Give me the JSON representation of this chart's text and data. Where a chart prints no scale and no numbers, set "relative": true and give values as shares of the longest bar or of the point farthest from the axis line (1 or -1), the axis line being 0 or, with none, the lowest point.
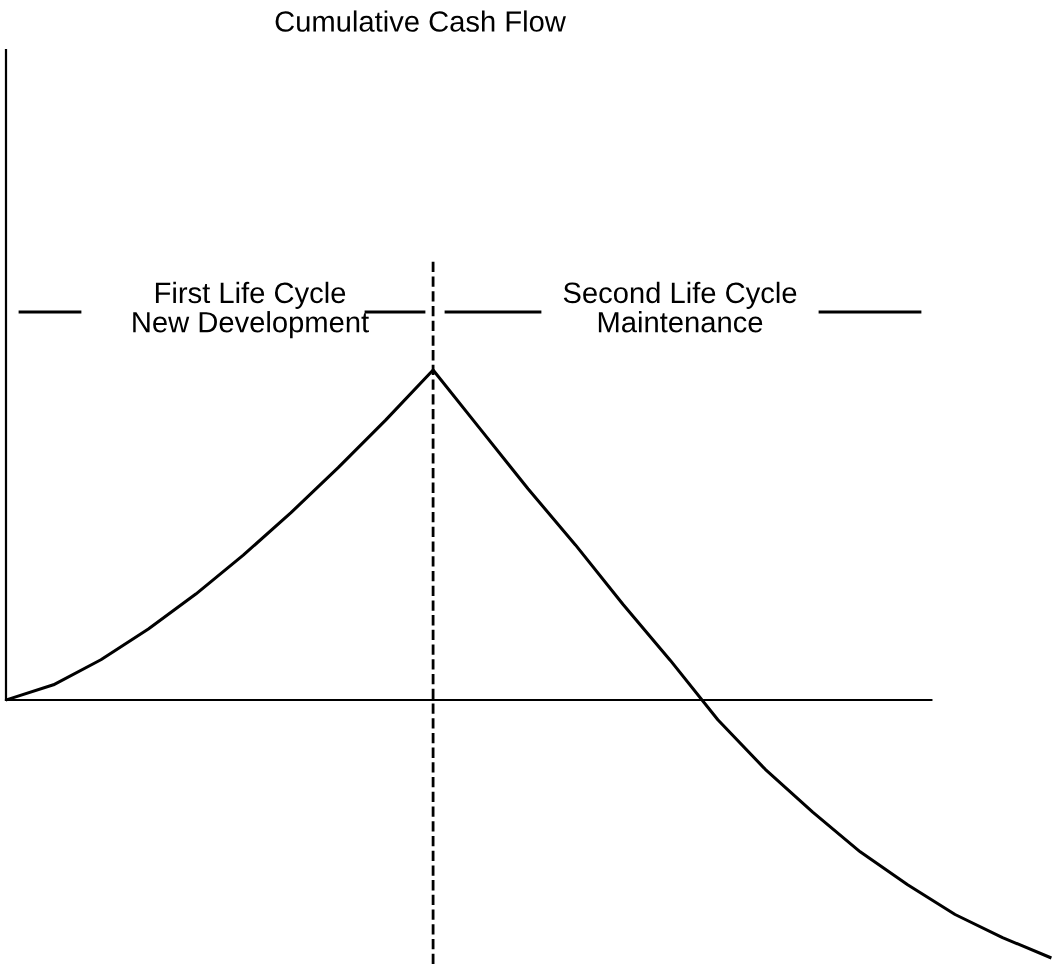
{
  "chart_data": {
    "type": "line",
    "title": "Cumulative Cash Flow",
    "relative": true,
    "categories": [
      null,
      null,
      null,
      null,
      null,
      null,
      null,
      null,
      null,
      null,
      null,
      null,
      null,
      null,
      null,
      null,
      null,
      null,
      null,
      null,
      null,
      null,
      null
    ],
    "series": [
      {
        "color": "#000000",
        "values": [
          0,
          0.046,
          0.122,
          0.215,
          0.321,
          0.439,
          0.567,
          0.704,
          0.848,
          1,
          0.82,
          0.64,
          0.47,
          0.29,
          0.12,
          -0.06,
          -0.21,
          -0.34,
          -0.46,
          -0.56,
          -0.65,
          -0.72,
          -0.78
        ]
      }
    ],
    "annotations": [
      "First Life Cycle\nNew Development",
      "Second Life Cycle\nMaintenance"
    ],
    "marker": "none",
    "line_style": "solid"
  }
}
